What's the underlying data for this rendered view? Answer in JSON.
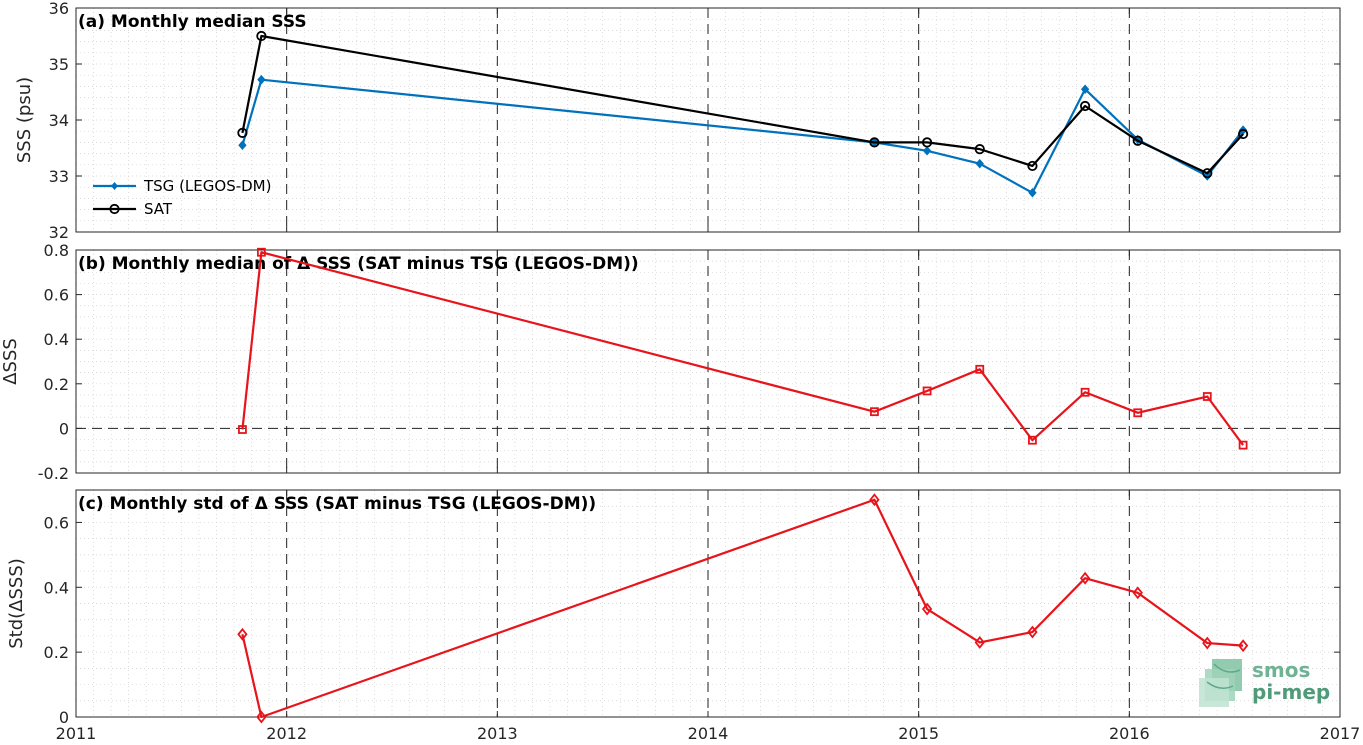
{
  "chart_data": [
    {
      "type": "line",
      "title": "(a) Monthly median SSS",
      "ylabel": "SSS (psu)",
      "xlim": [
        2011,
        2017
      ],
      "ylim": [
        32,
        36
      ],
      "x_ticks": [
        "2011",
        "2012",
        "2013",
        "2014",
        "2015",
        "2016",
        "2017"
      ],
      "y_ticks": [
        "32",
        "33",
        "34",
        "35",
        "36"
      ],
      "grid": "dotted minor grid with dashed vertical year lines",
      "legend_position": "bottom-left",
      "series": [
        {
          "name": "TSG (LEGOS-DM)",
          "color": "#0072bd",
          "marker": "filled-diamond",
          "x": [
            2011.79,
            2011.88,
            2014.79,
            2015.04,
            2015.29,
            2015.54,
            2015.79,
            2016.04,
            2016.37,
            2016.54
          ],
          "y": [
            33.55,
            34.72,
            33.6,
            33.45,
            33.22,
            32.7,
            34.55,
            33.65,
            33.0,
            33.82
          ]
        },
        {
          "name": "SAT",
          "color": "#000000",
          "marker": "circle",
          "x": [
            2011.79,
            2011.88,
            2014.79,
            2015.04,
            2015.29,
            2015.54,
            2015.79,
            2016.04,
            2016.37,
            2016.54
          ],
          "y": [
            33.77,
            35.5,
            33.6,
            33.6,
            33.48,
            33.18,
            34.25,
            33.63,
            33.05,
            33.75
          ]
        }
      ]
    },
    {
      "type": "line",
      "title": "(b) Monthly median of Δ SSS (SAT minus TSG (LEGOS-DM))",
      "ylabel": "ΔSSS",
      "xlim": [
        2011,
        2017
      ],
      "ylim": [
        -0.2,
        0.8
      ],
      "x_ticks": [
        "2011",
        "2012",
        "2013",
        "2014",
        "2015",
        "2016",
        "2017"
      ],
      "y_ticks": [
        "-0.2",
        "0",
        "0.2",
        "0.4",
        "0.6",
        "0.8"
      ],
      "reference_line": 0,
      "series": [
        {
          "color": "#e8141b",
          "marker": "square",
          "x": [
            2011.79,
            2011.88,
            2014.79,
            2015.04,
            2015.29,
            2015.54,
            2015.79,
            2016.04,
            2016.37,
            2016.54
          ],
          "y": [
            -0.005,
            0.79,
            0.075,
            0.168,
            0.265,
            -0.053,
            0.162,
            0.07,
            0.143,
            -0.075
          ]
        }
      ]
    },
    {
      "type": "line",
      "title": "(c) Monthly std of Δ SSS (SAT minus TSG (LEGOS-DM))",
      "ylabel": "Std(ΔSSS)",
      "xlim": [
        2011,
        2017
      ],
      "ylim": [
        0,
        0.7
      ],
      "x_ticks": [
        "2011",
        "2012",
        "2013",
        "2014",
        "2015",
        "2016",
        "2017"
      ],
      "y_ticks": [
        "0",
        "0.2",
        "0.4",
        "0.6"
      ],
      "series": [
        {
          "color": "#e8141b",
          "marker": "diamond",
          "x": [
            2011.79,
            2011.88,
            2014.79,
            2015.04,
            2015.29,
            2015.54,
            2015.79,
            2016.04,
            2016.37,
            2016.54
          ],
          "y": [
            0.255,
            0.0,
            0.67,
            0.333,
            0.23,
            0.262,
            0.428,
            0.383,
            0.228,
            0.22
          ]
        }
      ]
    }
  ],
  "logo": {
    "line1": "smos",
    "line2": "pi-mep"
  }
}
